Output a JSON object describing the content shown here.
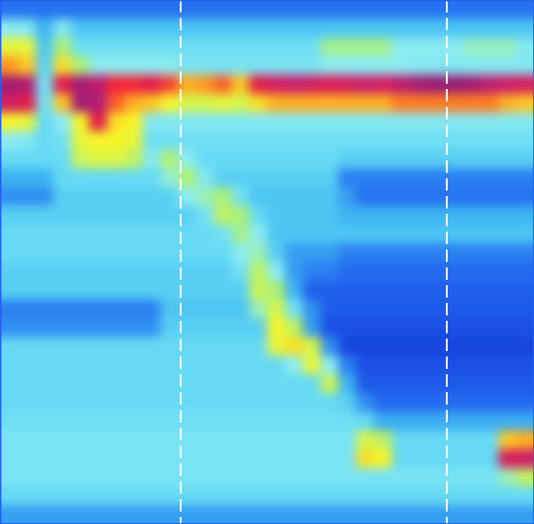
{
  "chart_data": {
    "type": "heatmap",
    "tick_labels": false,
    "xlim": [
      0,
      30
    ],
    "ylim": [
      0,
      28
    ],
    "zlim": [
      -10,
      150
    ],
    "markers": [
      10.15,
      25.1
    ],
    "cells": [
      [
        6,
        6,
        6,
        6,
        6,
        6,
        6,
        6,
        6,
        6,
        6,
        6,
        6,
        6,
        6,
        6,
        6,
        6,
        6,
        6,
        6,
        6,
        6,
        6,
        6,
        6,
        6,
        6,
        6,
        6
      ],
      [
        30,
        28,
        15,
        28,
        18,
        18,
        18,
        18,
        18,
        18,
        18,
        18,
        18,
        18,
        18,
        18,
        18,
        18,
        18,
        18,
        18,
        18,
        18,
        18,
        18,
        18,
        18,
        18,
        18,
        18
      ],
      [
        55,
        55,
        18,
        40,
        24,
        24,
        24,
        24,
        24,
        24,
        24,
        24,
        24,
        24,
        24,
        24,
        24,
        24,
        38,
        38,
        38,
        38,
        30,
        30,
        30,
        30,
        34,
        34,
        34,
        28
      ],
      [
        80,
        70,
        20,
        65,
        40,
        30,
        30,
        30,
        30,
        30,
        26,
        26,
        26,
        26,
        26,
        26,
        26,
        26,
        30,
        30,
        30,
        30,
        30,
        28,
        28,
        28,
        28,
        28,
        28,
        28
      ],
      [
        140,
        135,
        25,
        110,
        140,
        130,
        100,
        100,
        110,
        95,
        75,
        80,
        90,
        70,
        110,
        120,
        125,
        120,
        115,
        120,
        125,
        120,
        130,
        140,
        145,
        145,
        140,
        130,
        125,
        120
      ],
      [
        120,
        110,
        25,
        70,
        140,
        135,
        90,
        75,
        70,
        60,
        50,
        50,
        55,
        50,
        65,
        75,
        75,
        75,
        75,
        75,
        75,
        75,
        85,
        85,
        85,
        85,
        85,
        85,
        75,
        70
      ],
      [
        60,
        55,
        22,
        30,
        60,
        110,
        65,
        60,
        28,
        28,
        28,
        28,
        28,
        28,
        28,
        28,
        28,
        28,
        28,
        28,
        28,
        28,
        28,
        28,
        28,
        28,
        28,
        28,
        28,
        28
      ],
      [
        30,
        28,
        22,
        25,
        55,
        60,
        60,
        55,
        24,
        24,
        24,
        24,
        24,
        24,
        24,
        24,
        24,
        24,
        24,
        24,
        24,
        24,
        24,
        24,
        24,
        24,
        24,
        24,
        24,
        24
      ],
      [
        22,
        22,
        22,
        22,
        48,
        52,
        52,
        45,
        28,
        42,
        30,
        22,
        22,
        22,
        22,
        22,
        22,
        22,
        22,
        20,
        20,
        20,
        20,
        20,
        20,
        20,
        20,
        20,
        20,
        20
      ],
      [
        15,
        15,
        15,
        22,
        22,
        22,
        22,
        22,
        22,
        32,
        42,
        28,
        20,
        20,
        20,
        20,
        20,
        20,
        20,
        8,
        8,
        8,
        8,
        8,
        8,
        8,
        8,
        8,
        8,
        8
      ],
      [
        10,
        10,
        10,
        20,
        20,
        20,
        20,
        20,
        20,
        20,
        30,
        35,
        40,
        25,
        18,
        18,
        18,
        18,
        18,
        12,
        6,
        6,
        6,
        6,
        6,
        6,
        6,
        6,
        6,
        6
      ],
      [
        20,
        20,
        20,
        20,
        20,
        20,
        20,
        20,
        20,
        20,
        20,
        25,
        45,
        40,
        22,
        18,
        18,
        18,
        18,
        15,
        15,
        15,
        15,
        15,
        15,
        15,
        15,
        15,
        15,
        15
      ],
      [
        22,
        22,
        22,
        22,
        22,
        22,
        22,
        22,
        22,
        22,
        22,
        22,
        25,
        38,
        30,
        18,
        18,
        18,
        18,
        18,
        18,
        18,
        18,
        18,
        18,
        18,
        18,
        18,
        18,
        18
      ],
      [
        22,
        22,
        22,
        22,
        22,
        22,
        22,
        22,
        22,
        22,
        22,
        22,
        22,
        30,
        35,
        20,
        12,
        12,
        12,
        8,
        8,
        8,
        8,
        8,
        8,
        8,
        8,
        8,
        8,
        8
      ],
      [
        20,
        20,
        20,
        20,
        20,
        20,
        20,
        20,
        20,
        20,
        20,
        20,
        20,
        25,
        45,
        30,
        12,
        8,
        8,
        5,
        5,
        5,
        5,
        5,
        5,
        5,
        5,
        5,
        5,
        5
      ],
      [
        20,
        20,
        20,
        20,
        20,
        20,
        20,
        20,
        20,
        20,
        20,
        20,
        20,
        20,
        48,
        40,
        15,
        3,
        3,
        3,
        3,
        3,
        3,
        3,
        3,
        3,
        3,
        3,
        3,
        3
      ],
      [
        8,
        8,
        8,
        8,
        8,
        8,
        8,
        8,
        8,
        18,
        18,
        18,
        18,
        18,
        35,
        50,
        25,
        10,
        2,
        2,
        2,
        2,
        2,
        2,
        2,
        2,
        2,
        2,
        2,
        2
      ],
      [
        10,
        10,
        10,
        10,
        10,
        10,
        10,
        10,
        10,
        20,
        20,
        20,
        20,
        20,
        20,
        60,
        45,
        12,
        0,
        0,
        0,
        0,
        0,
        0,
        0,
        0,
        0,
        0,
        0,
        0
      ],
      [
        22,
        22,
        22,
        22,
        22,
        22,
        22,
        22,
        22,
        22,
        22,
        22,
        22,
        22,
        22,
        55,
        65,
        50,
        10,
        -2,
        -2,
        -2,
        -2,
        -2,
        -2,
        -2,
        -2,
        -2,
        -2,
        -2
      ],
      [
        22,
        22,
        22,
        22,
        22,
        22,
        22,
        22,
        22,
        22,
        22,
        22,
        22,
        22,
        22,
        22,
        30,
        55,
        30,
        8,
        0,
        0,
        0,
        0,
        0,
        0,
        0,
        0,
        0,
        0
      ],
      [
        22,
        22,
        22,
        22,
        22,
        22,
        22,
        22,
        22,
        22,
        22,
        22,
        22,
        22,
        22,
        22,
        22,
        22,
        48,
        15,
        2,
        2,
        2,
        2,
        2,
        2,
        2,
        2,
        2,
        2
      ],
      [
        22,
        22,
        22,
        22,
        22,
        22,
        22,
        22,
        22,
        22,
        22,
        22,
        22,
        22,
        22,
        22,
        22,
        22,
        22,
        20,
        10,
        5,
        5,
        5,
        5,
        5,
        5,
        5,
        5,
        5
      ],
      [
        24,
        24,
        24,
        24,
        24,
        24,
        24,
        24,
        24,
        24,
        24,
        24,
        24,
        24,
        24,
        24,
        24,
        24,
        24,
        24,
        22,
        14,
        14,
        14,
        14,
        14,
        14,
        14,
        14,
        14
      ],
      [
        26,
        26,
        26,
        26,
        26,
        26,
        26,
        26,
        26,
        26,
        26,
        26,
        26,
        26,
        26,
        26,
        26,
        26,
        26,
        26,
        50,
        45,
        22,
        22,
        22,
        22,
        22,
        22,
        70,
        75
      ],
      [
        26,
        26,
        26,
        26,
        26,
        26,
        26,
        26,
        26,
        26,
        26,
        26,
        26,
        26,
        26,
        26,
        26,
        26,
        26,
        26,
        65,
        60,
        22,
        22,
        22,
        22,
        22,
        22,
        115,
        125
      ],
      [
        26,
        26,
        26,
        26,
        26,
        26,
        26,
        26,
        26,
        26,
        26,
        26,
        26,
        26,
        26,
        26,
        26,
        26,
        26,
        26,
        26,
        26,
        26,
        26,
        26,
        26,
        26,
        26,
        35,
        45
      ],
      [
        22,
        22,
        22,
        22,
        22,
        22,
        22,
        22,
        22,
        22,
        22,
        22,
        22,
        22,
        22,
        22,
        22,
        22,
        22,
        22,
        22,
        22,
        22,
        22,
        22,
        22,
        22,
        22,
        22,
        22
      ],
      [
        12,
        12,
        12,
        12,
        12,
        12,
        12,
        12,
        12,
        12,
        12,
        12,
        12,
        12,
        12,
        12,
        12,
        12,
        12,
        12,
        12,
        12,
        12,
        12,
        12,
        12,
        12,
        12,
        12,
        12
      ]
    ]
  }
}
